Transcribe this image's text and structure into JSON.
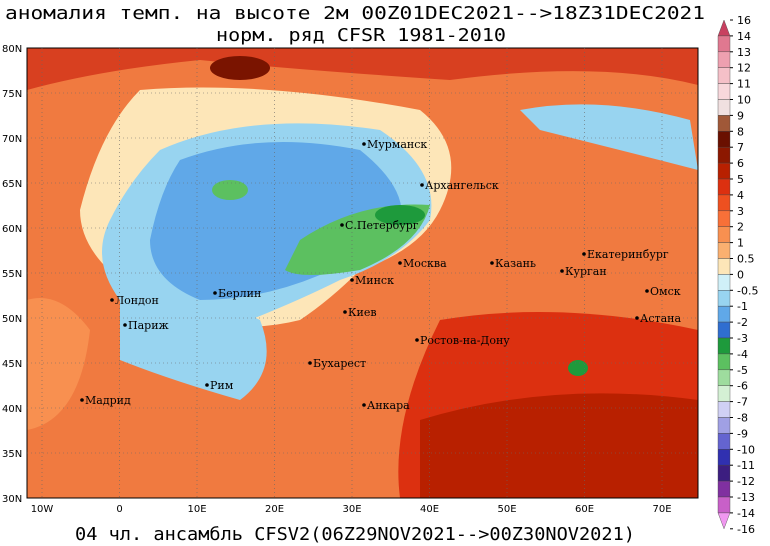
{
  "header": {
    "title_line1": "аномалия темп. на высоте 2м 00Z01DEC2021-->18Z31DEC2021",
    "title_line2": "норм. ряд CFSR 1981-2010"
  },
  "footer": "04 чл. ансамбль CFSV2(06Z29NOV2021-->00Z30NOV2021)",
  "map": {
    "lat_labels": [
      "80N",
      "75N",
      "70N",
      "65N",
      "60N",
      "55N",
      "50N",
      "45N",
      "40N",
      "35N",
      "30N"
    ],
    "lon_labels": [
      "10W",
      "0",
      "10E",
      "20E",
      "30E",
      "40E",
      "50E",
      "60E",
      "70E"
    ],
    "cities": [
      "Мурманск",
      "Архангельск",
      "С.Петербург",
      "Екатеринбург",
      "Москва",
      "Казань",
      "Курган",
      "Лондон",
      "Берлин",
      "Минск",
      "Омск",
      "Париж",
      "Киев",
      "Астана",
      "Ростов-на-Дону",
      "Бухарест",
      "Рим",
      "Анкара",
      "Мадрид"
    ]
  },
  "colorbar": {
    "levels": [
      16,
      14,
      13,
      12,
      11,
      10,
      9,
      8,
      7,
      6,
      5,
      4,
      3,
      2,
      1,
      0.5,
      0,
      -0.5,
      -1,
      -2,
      -3,
      -4,
      -5,
      -6,
      -7,
      -8,
      -9,
      -10,
      -11,
      -12,
      -13,
      -14,
      -16
    ],
    "colors": [
      "#c84060",
      "#e07890",
      "#eea0b0",
      "#f5c0c8",
      "#f8d8dc",
      "#f0e0e0",
      "#a05838",
      "#6a1000",
      "#8c1800",
      "#b82000",
      "#dc3010",
      "#ee5020",
      "#f87038",
      "#f89050",
      "#fab070",
      "#fde6b8",
      "#d0f0f8",
      "#98d4f0",
      "#60a8e8",
      "#2f6ed0",
      "#1e9a3c",
      "#5cc060",
      "#9edc9e",
      "#d4f0d4",
      "#d0d0f4",
      "#a0a0e4",
      "#6464d0",
      "#3030b0",
      "#3c1e80",
      "#8030a0",
      "#c860c8",
      "#f098f0"
    ]
  }
}
